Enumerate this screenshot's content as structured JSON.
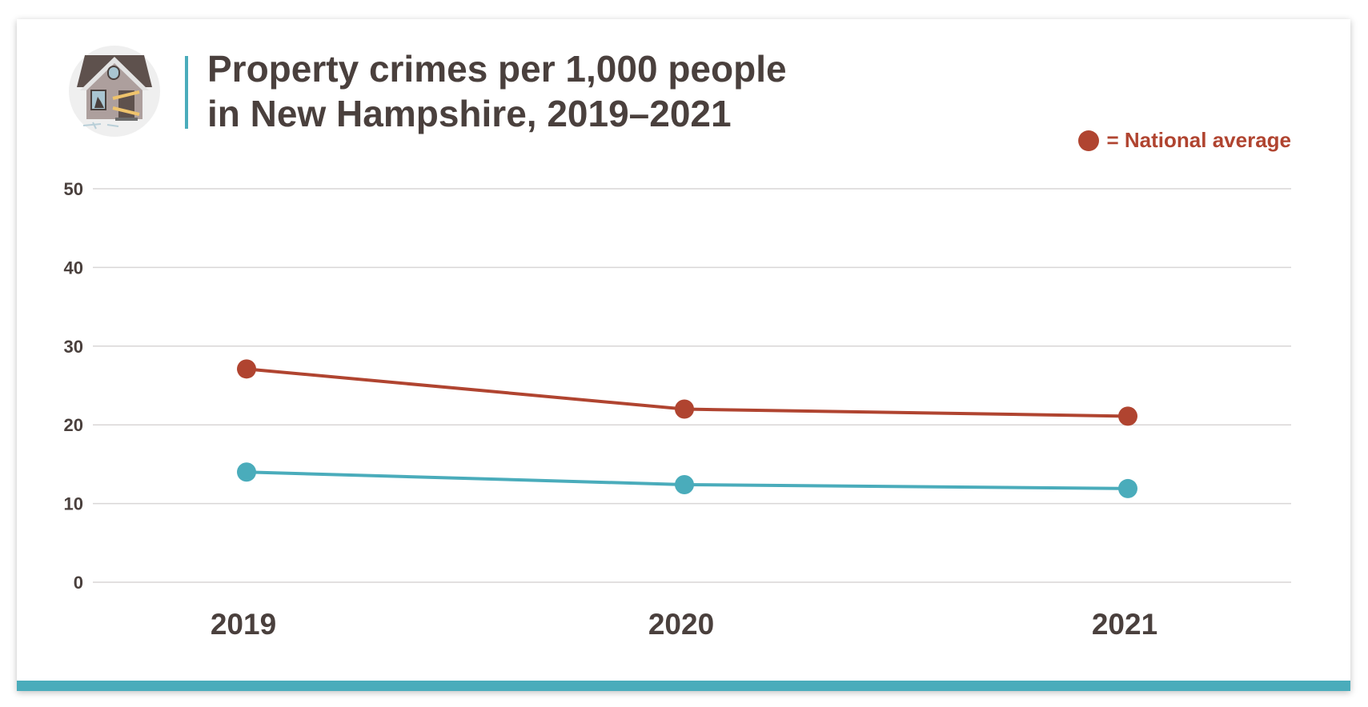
{
  "title": {
    "line1": "Property crimes per 1,000 people",
    "line2": "in New Hampshire, 2019–2021"
  },
  "icon": "boarded-up-house-icon",
  "legend": {
    "label": "= National average",
    "color": "#b04430"
  },
  "colors": {
    "text": "#4a403d",
    "accent": "#4aacbb",
    "national": "#b04430",
    "state": "#4aacbb",
    "grid": "#d9d6d6"
  },
  "chart_data": {
    "type": "line",
    "title": "Property crimes per 1,000 people in New Hampshire, 2019–2021",
    "categories": [
      "2019",
      "2020",
      "2021"
    ],
    "series": [
      {
        "name": "National average",
        "color": "#b04430",
        "values": [
          27.1,
          22.0,
          21.1
        ]
      },
      {
        "color": "#4aacbb",
        "values": [
          14.0,
          12.4,
          11.9
        ]
      }
    ],
    "ylim": [
      0,
      50
    ],
    "yticks": [
      "0",
      "10",
      "20",
      "30",
      "40",
      "50"
    ],
    "grid": true,
    "legend_position": "top-right"
  }
}
